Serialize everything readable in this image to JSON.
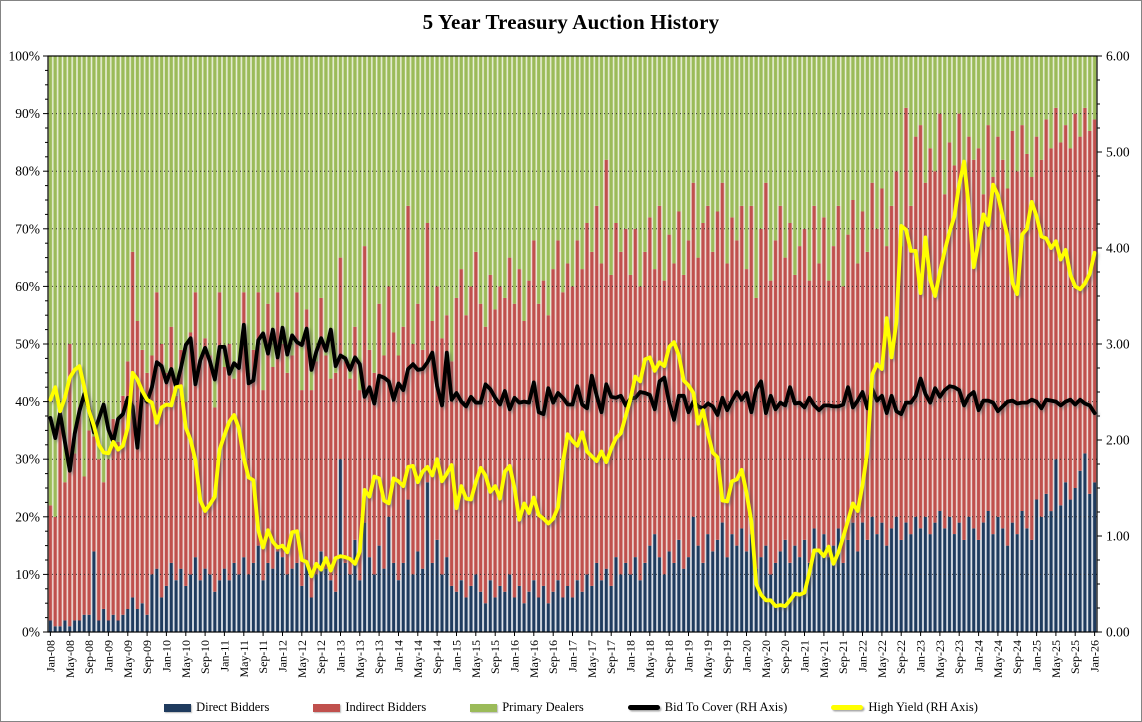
{
  "chart_data": {
    "type": "combo",
    "bar_mode": "stacked-100-percent",
    "title": "5 Year Treasury Auction History",
    "x_is_monthly": true,
    "x_start": "Jan-08",
    "x_end": "Jan-26",
    "x_labels": [
      "Jan-08",
      "May-08",
      "Sep-08",
      "Jan-09",
      "May-09",
      "Sep-09",
      "Jan-10",
      "May-10",
      "Sep-10",
      "Jan-11",
      "May-11",
      "Sep-11",
      "Jan-12",
      "May-12",
      "Sep-12",
      "Jan-13",
      "May-13",
      "Sep-13",
      "Jan-14",
      "May-14",
      "Sep-14",
      "Jan-15",
      "May-15",
      "Sep-15",
      "Jan-16",
      "May-16",
      "Sep-16",
      "Jan-17",
      "May-17",
      "Sep-17",
      "Jan-18",
      "May-18",
      "Sep-18",
      "Jan-19",
      "May-19",
      "Sep-19",
      "Jan-20",
      "May-20",
      "Sep-20",
      "Jan-21",
      "May-21",
      "Sep-21",
      "Jan-22",
      "May-22",
      "Sep-22",
      "Jan-23",
      "May-23",
      "Sep-23",
      "Jan-24",
      "May-24",
      "Sep-24",
      "Jan-25",
      "May-25",
      "Sep-25",
      "Jan-26"
    ],
    "x_label_every_n_months": 4,
    "left_axis": {
      "min": 0,
      "max": 100,
      "ticks": [
        "100%",
        "90%",
        "80%",
        "70%",
        "60%",
        "50%",
        "40%",
        "30%",
        "20%",
        "10%",
        "0%"
      ]
    },
    "right_axis": {
      "min": 0,
      "max": 6,
      "ticks": [
        "6.00",
        "5.00",
        "4.00",
        "3.00",
        "2.00",
        "1.00",
        "0.00"
      ]
    },
    "gridlines": {
      "horizontal": "dotted",
      "color": "#2a2a2a"
    },
    "series": [
      {
        "name": "Direct Bidders",
        "type": "bar",
        "axis": "left",
        "color": "#1F3B5E",
        "color_light": "#b3bdcb",
        "values": [
          2,
          1,
          1,
          2,
          1,
          2,
          2,
          3,
          3,
          14,
          2,
          4,
          2,
          3,
          2,
          3,
          4,
          6,
          4,
          5,
          3,
          10,
          11,
          6,
          8,
          12,
          9,
          11,
          8,
          10,
          13,
          9,
          11,
          10,
          7,
          9,
          11,
          9,
          12,
          10,
          13,
          10,
          12,
          15,
          9,
          12,
          11,
          14,
          13,
          10,
          11,
          12,
          8,
          12,
          6,
          10,
          14,
          11,
          9,
          7,
          30,
          12,
          10,
          16,
          9,
          19,
          13,
          10,
          15,
          11,
          20,
          12,
          9,
          12,
          23,
          10,
          14,
          11,
          26,
          12,
          16,
          10,
          13,
          8,
          7,
          9,
          6,
          8,
          10,
          7,
          5,
          9,
          6,
          8,
          7,
          10,
          6,
          8,
          5,
          7,
          9,
          6,
          8,
          5,
          7,
          9,
          6,
          8,
          6,
          9,
          7,
          10,
          8,
          12,
          9,
          11,
          8,
          13,
          10,
          12,
          10,
          13,
          9,
          12,
          15,
          17,
          13,
          10,
          14,
          12,
          16,
          11,
          13,
          20,
          15,
          12,
          17,
          14,
          16,
          19,
          13,
          17,
          15,
          18,
          14,
          17,
          11,
          13,
          15,
          10,
          12,
          14,
          16,
          12,
          15,
          13,
          16,
          12,
          18,
          14,
          17,
          13,
          15,
          18,
          12,
          16,
          19,
          14,
          19,
          16,
          20,
          17,
          19,
          15,
          18,
          20,
          16,
          19,
          17,
          20,
          18,
          20,
          17,
          19,
          21,
          18,
          20,
          17,
          19,
          16,
          20,
          18,
          16,
          19,
          21,
          17,
          20,
          18,
          15,
          19,
          17,
          21,
          18,
          16,
          23,
          20,
          24,
          21,
          30,
          22,
          26,
          23,
          25,
          28,
          31,
          24,
          26
        ]
      },
      {
        "name": "Indirect Bidders",
        "type": "bar",
        "axis": "left",
        "color": "#C0504D",
        "color_light": "#dda9a3",
        "values": [
          20,
          19,
          35,
          24,
          49,
          29,
          37,
          24,
          32,
          20,
          28,
          22,
          28,
          34,
          31,
          38,
          43,
          60,
          50,
          44,
          42,
          38,
          48,
          44,
          37,
          41,
          32,
          38,
          32,
          42,
          46,
          38,
          40,
          38,
          32,
          50,
          35,
          41,
          32,
          37,
          46,
          35,
          37,
          44,
          33,
          45,
          35,
          45,
          37,
          35,
          37,
          47,
          34,
          44,
          36,
          37,
          44,
          37,
          35,
          38,
          35,
          35,
          34,
          37,
          33,
          48,
          36,
          35,
          42,
          37,
          40,
          40,
          39,
          41,
          51,
          40,
          43,
          38,
          45,
          42,
          44,
          41,
          42,
          39,
          51,
          54,
          49,
          52,
          56,
          50,
          48,
          53,
          50,
          52,
          51,
          55,
          51,
          55,
          49,
          54,
          59,
          51,
          53,
          50,
          56,
          59,
          53,
          56,
          54,
          59,
          56,
          61,
          58,
          62,
          55,
          71,
          54,
          58,
          56,
          58,
          52,
          57,
          51,
          54,
          57,
          46,
          61,
          51,
          55,
          52,
          57,
          51,
          55,
          58,
          50,
          59,
          57,
          52,
          57,
          59,
          51,
          55,
          53,
          56,
          49,
          57,
          47,
          57,
          63,
          51,
          56,
          60,
          49,
          59,
          47,
          54,
          54,
          49,
          56,
          50,
          55,
          48,
          52,
          56,
          48,
          53,
          56,
          50,
          54,
          50,
          58,
          53,
          58,
          52,
          56,
          60,
          51,
          72,
          57,
          66,
          70,
          58,
          67,
          61,
          69,
          58,
          65,
          64,
          71,
          63,
          66,
          64,
          68,
          57,
          67,
          62,
          66,
          64,
          62,
          68,
          63,
          67,
          65,
          63,
          63,
          62,
          65,
          63,
          61,
          63,
          62,
          61,
          65,
          58,
          60,
          63,
          63
        ]
      },
      {
        "name": "Primary Dealers",
        "type": "bar",
        "axis": "left",
        "color": "#9BBB59",
        "color_light": "#c9d9a2",
        "derived": "100 - Direct Bidders - Indirect Bidders"
      },
      {
        "name": "Bid To Cover (RH Axis)",
        "type": "line",
        "axis": "right",
        "color": "#000000",
        "values": [
          2.23,
          2.02,
          2.28,
          1.98,
          1.68,
          2.06,
          2.3,
          2.48,
          2.32,
          2.08,
          2.22,
          2.37,
          2.11,
          1.98,
          2.22,
          2.27,
          2.44,
          2.35,
          1.92,
          2.51,
          2.4,
          2.55,
          2.81,
          2.77,
          2.6,
          2.74,
          2.55,
          2.75,
          2.99,
          3.06,
          2.58,
          2.83,
          2.96,
          2.82,
          2.63,
          2.97,
          2.97,
          2.69,
          2.8,
          2.75,
          3.2,
          2.59,
          2.62,
          3.04,
          3.11,
          2.9,
          3.15,
          2.86,
          3.17,
          2.89,
          3.09,
          3.02,
          2.99,
          3.16,
          2.73,
          2.92,
          3.06,
          2.93,
          3.15,
          2.77,
          2.88,
          2.85,
          2.73,
          2.86,
          2.79,
          2.45,
          2.55,
          2.38,
          2.67,
          2.65,
          2.61,
          2.42,
          2.59,
          2.52,
          2.74,
          2.79,
          2.73,
          2.74,
          2.81,
          2.91,
          2.56,
          2.36,
          2.91,
          2.42,
          2.49,
          2.4,
          2.35,
          2.45,
          2.39,
          2.39,
          2.58,
          2.53,
          2.44,
          2.37,
          2.51,
          2.32,
          2.44,
          2.39,
          2.4,
          2.39,
          2.6,
          2.29,
          2.27,
          2.54,
          2.39,
          2.49,
          2.44,
          2.37,
          2.37,
          2.56,
          2.37,
          2.33,
          2.67,
          2.46,
          2.29,
          2.58,
          2.45,
          2.44,
          2.46,
          2.36,
          2.43,
          2.44,
          2.5,
          2.49,
          2.47,
          2.32,
          2.61,
          2.65,
          2.39,
          2.21,
          2.46,
          2.46,
          2.29,
          2.4,
          2.35,
          2.33,
          2.38,
          2.35,
          2.26,
          2.44,
          2.31,
          2.41,
          2.5,
          2.42,
          2.49,
          2.29,
          2.53,
          2.61,
          2.28,
          2.46,
          2.32,
          2.39,
          2.36,
          2.55,
          2.38,
          2.39,
          2.34,
          2.44,
          2.36,
          2.31,
          2.36,
          2.36,
          2.35,
          2.35,
          2.37,
          2.55,
          2.34,
          2.41,
          2.5,
          2.33,
          2.53,
          2.41,
          2.46,
          2.28,
          2.46,
          2.3,
          2.27,
          2.39,
          2.39,
          2.46,
          2.64,
          2.48,
          2.39,
          2.54,
          2.45,
          2.52,
          2.56,
          2.55,
          2.52,
          2.36,
          2.46,
          2.5,
          2.31,
          2.41,
          2.41,
          2.39,
          2.3,
          2.35,
          2.4,
          2.41,
          2.38,
          2.39,
          2.39,
          2.42,
          2.4,
          2.33,
          2.42,
          2.41,
          2.4,
          2.36,
          2.4,
          2.42,
          2.37,
          2.42,
          2.38,
          2.36,
          2.28
        ]
      },
      {
        "name": "High Yield (RH Axis)",
        "type": "line",
        "axis": "right",
        "color": "#FFFF00",
        "values": [
          2.42,
          2.55,
          2.3,
          2.44,
          2.65,
          2.73,
          2.77,
          2.55,
          2.3,
          2.15,
          1.95,
          1.87,
          1.86,
          1.98,
          1.9,
          1.94,
          2.13,
          2.7,
          2.63,
          2.51,
          2.42,
          2.39,
          2.18,
          2.34,
          2.37,
          2.36,
          2.55,
          2.56,
          2.13,
          2.0,
          1.79,
          1.37,
          1.26,
          1.33,
          1.41,
          1.9,
          2.05,
          2.19,
          2.26,
          2.12,
          1.81,
          1.61,
          1.58,
          1.06,
          0.88,
          1.06,
          0.94,
          0.88,
          0.9,
          0.83,
          1.04,
          1.05,
          0.75,
          0.73,
          0.58,
          0.71,
          0.65,
          0.77,
          0.64,
          0.77,
          0.79,
          0.78,
          0.76,
          0.71,
          0.84,
          1.48,
          1.41,
          1.62,
          1.6,
          1.37,
          1.34,
          1.6,
          1.57,
          1.52,
          1.72,
          1.73,
          1.56,
          1.67,
          1.72,
          1.63,
          1.8,
          1.57,
          1.65,
          1.74,
          1.29,
          1.52,
          1.39,
          1.38,
          1.56,
          1.71,
          1.63,
          1.46,
          1.52,
          1.39,
          1.67,
          1.73,
          1.5,
          1.17,
          1.34,
          1.24,
          1.4,
          1.22,
          1.18,
          1.13,
          1.18,
          1.3,
          1.76,
          2.06,
          1.99,
          1.94,
          2.08,
          1.88,
          1.83,
          1.78,
          1.88,
          1.77,
          1.91,
          2.02,
          2.07,
          2.25,
          2.43,
          2.66,
          2.61,
          2.84,
          2.86,
          2.72,
          2.81,
          2.77,
          2.97,
          3.02,
          2.88,
          2.62,
          2.57,
          2.49,
          2.17,
          2.31,
          2.07,
          1.87,
          1.82,
          1.37,
          1.36,
          1.57,
          1.59,
          1.69,
          1.45,
          1.15,
          0.5,
          0.39,
          0.33,
          0.33,
          0.27,
          0.28,
          0.27,
          0.33,
          0.4,
          0.39,
          0.41,
          0.62,
          0.85,
          0.85,
          0.79,
          0.89,
          0.71,
          0.83,
          0.99,
          1.16,
          1.34,
          1.26,
          1.53,
          1.88,
          2.68,
          2.79,
          2.74,
          3.27,
          2.86,
          3.23,
          4.23,
          4.19,
          3.97,
          3.97,
          3.53,
          4.11,
          3.67,
          3.5,
          3.75,
          3.97,
          4.17,
          4.33,
          4.66,
          4.9,
          4.42,
          3.8,
          4.06,
          4.35,
          4.24,
          4.66,
          4.55,
          4.33,
          4.12,
          3.64,
          3.52,
          4.14,
          4.2,
          4.48,
          4.33,
          4.12,
          4.1,
          4.0,
          4.07,
          3.88,
          3.98,
          3.72,
          3.6,
          3.57,
          3.63,
          3.73,
          3.95
        ]
      }
    ],
    "legend": {
      "position": "bottom"
    }
  }
}
